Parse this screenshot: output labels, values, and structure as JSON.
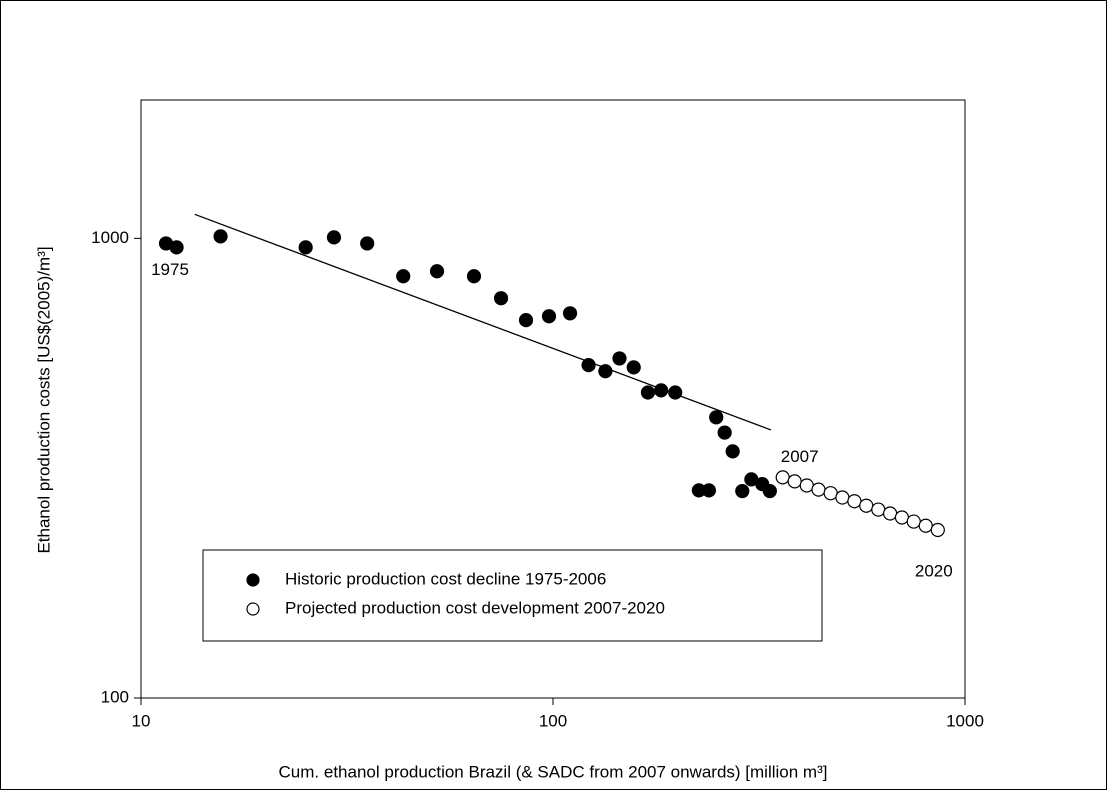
{
  "chart_data": {
    "type": "scatter",
    "xlabel": "Cum. ethanol production Brazil (& SADC from 2007 onwards) [million m³]",
    "ylabel": "Ethanol production costs [US$(2005)/m³]",
    "xscale": "log",
    "yscale": "log",
    "xlim": [
      10,
      1000
    ],
    "ylim": [
      100,
      2000
    ],
    "xticks": [
      10,
      100,
      1000
    ],
    "yticks": [
      100,
      1000
    ],
    "series": [
      {
        "name": "Historic production cost decline 1975-2006",
        "color": "#000000",
        "x": [
          11.5,
          12.2,
          15.6,
          25.1,
          29.4,
          35.4,
          43.3,
          52.3,
          64.3,
          74.8,
          86.0,
          97.8,
          110,
          122,
          134,
          145,
          157,
          170,
          183,
          198,
          249,
          261,
          273,
          226,
          239,
          288,
          303,
          322,
          336
        ],
        "values": [
          975,
          956,
          1010,
          956,
          1005,
          975,
          827,
          848,
          827,
          741,
          664,
          677,
          687,
          530,
          514,
          548,
          524,
          462,
          467,
          462,
          408,
          378,
          344,
          283,
          283,
          282,
          299,
          292,
          282
        ]
      },
      {
        "name": "Projected production cost development 2007-2020",
        "color": "#ffffff",
        "x": [
          361,
          386,
          413,
          441,
          472,
          504,
          539,
          576,
          616,
          658,
          703,
          751,
          803,
          859
        ],
        "values": [
          302,
          296,
          290,
          284,
          279,
          273,
          268,
          262,
          257,
          252,
          247,
          242,
          237,
          232
        ]
      }
    ],
    "trend_line": {
      "x": [
        13.5,
        338
      ],
      "values": [
        1128,
        383
      ]
    },
    "annotations": [
      "1975",
      "2007",
      "2020"
    ]
  }
}
